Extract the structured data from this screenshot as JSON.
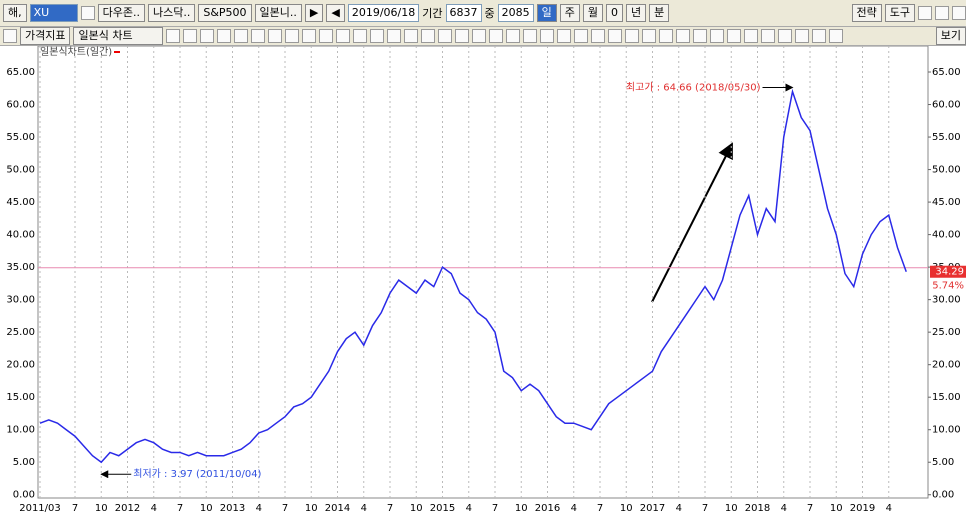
{
  "toolbar": {
    "market": "해,",
    "symbol": "XU",
    "indices": [
      "다우존..",
      "나스닥..",
      "S&P500",
      "일본니.."
    ],
    "date": "2019/06/18",
    "period_label": "기간",
    "period": "6837",
    "mid_label": "중",
    "mid": "2085",
    "units": [
      "일",
      "주",
      "월",
      "0",
      "년",
      "분"
    ],
    "right": [
      "전략",
      "도구"
    ],
    "price_indicator": "가격지표",
    "chart_kind": "일본식 차트",
    "view": "보기"
  },
  "chart_data": {
    "type": "line",
    "legend": "일본식차트(일간)",
    "categories": [
      "2011/03",
      null,
      null,
      null,
      "7",
      null,
      null,
      "10",
      null,
      null,
      "2012",
      null,
      null,
      "4",
      null,
      null,
      "7",
      null,
      null,
      "10",
      null,
      null,
      "2013",
      null,
      null,
      "4",
      null,
      null,
      "7",
      null,
      null,
      "10",
      null,
      null,
      "2014",
      null,
      null,
      "4",
      null,
      null,
      "7",
      null,
      null,
      "10",
      null,
      null,
      "2015",
      null,
      null,
      "4",
      null,
      null,
      "7",
      null,
      null,
      "10",
      null,
      null,
      "2016",
      null,
      null,
      "4",
      null,
      null,
      "7",
      null,
      null,
      "10",
      null,
      null,
      "2017",
      null,
      null,
      "4",
      null,
      null,
      "7",
      null,
      null,
      "10",
      null,
      null,
      "2018",
      null,
      null,
      "4",
      null,
      null,
      "7",
      null,
      null,
      "10",
      null,
      null,
      "2019",
      null,
      null,
      "4",
      null,
      null
    ],
    "series": [
      {
        "name": "일본식차트(일간)",
        "color": "#2a2ae8",
        "values": [
          11,
          11.5,
          11,
          10,
          9,
          7.5,
          6,
          5,
          6.5,
          6,
          7,
          8,
          8.5,
          8,
          7,
          6.5,
          6.5,
          6,
          6.5,
          6,
          6,
          6,
          6.5,
          7,
          8,
          9.5,
          10,
          11,
          12,
          13.5,
          14,
          15,
          17,
          19,
          22,
          24,
          25,
          23,
          26,
          28,
          31,
          33,
          32,
          31,
          33,
          32,
          35,
          34,
          31,
          30,
          28,
          27,
          25,
          19,
          18,
          16,
          17,
          16,
          14,
          12,
          11,
          11,
          10.5,
          10,
          12,
          14,
          15,
          16,
          17,
          18,
          19,
          22,
          24,
          26,
          28,
          30,
          32,
          30,
          33,
          38,
          43,
          46,
          40,
          44,
          42,
          55,
          62,
          58,
          56,
          50,
          44,
          40,
          34,
          32,
          37,
          40,
          42,
          43,
          38,
          34.29
        ]
      }
    ],
    "ylim": [
      -0.5,
      69
    ],
    "yticks": [
      {
        "value": 0,
        "label": "0.00"
      },
      {
        "value": 5,
        "label": "5.00"
      },
      {
        "value": 10,
        "label": "10.00"
      },
      {
        "value": 15,
        "label": "15.00"
      },
      {
        "value": 20,
        "label": "20.00"
      },
      {
        "value": 25,
        "label": "25.00"
      },
      {
        "value": 30,
        "label": "30.00"
      },
      {
        "value": 35,
        "label": "35.00"
      },
      {
        "value": 40,
        "label": "40.00"
      },
      {
        "value": 45,
        "label": "45.00"
      },
      {
        "value": 50,
        "label": "50.00"
      },
      {
        "value": 55,
        "label": "55.00"
      },
      {
        "value": 60,
        "label": "60.00"
      },
      {
        "value": 65,
        "label": "65.00"
      }
    ],
    "hline": 34.9,
    "hline_color": "#e88ab0",
    "last_value": 34.29,
    "last_label": "34.29",
    "change": "5.74%",
    "high_note": "최고가 : 64.66 (2018/05/30)",
    "high_index": 86,
    "low_note": "최저가 : 3.97 (2011/10/04)",
    "low_index": 7,
    "grid": true
  }
}
